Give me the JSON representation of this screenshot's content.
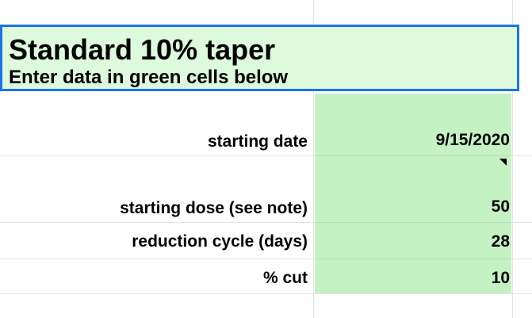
{
  "header": {
    "title": "Standard 10% taper",
    "subtitle": "Enter data in green cells below"
  },
  "rows": [
    {
      "label": "starting date",
      "value": "9/15/2020"
    },
    {
      "label": "starting dose (see note)",
      "value": "50"
    },
    {
      "label": "reduction cycle (days)",
      "value": "28"
    },
    {
      "label": "% cut",
      "value": "10"
    }
  ],
  "colors": {
    "header_fill": "#ddfadd",
    "input_fill": "#c5f2c2",
    "selection_border": "#1a73e8",
    "gridline": "#e2e3e3"
  },
  "icons": {
    "note_marker": "note-indicator-triangle"
  }
}
